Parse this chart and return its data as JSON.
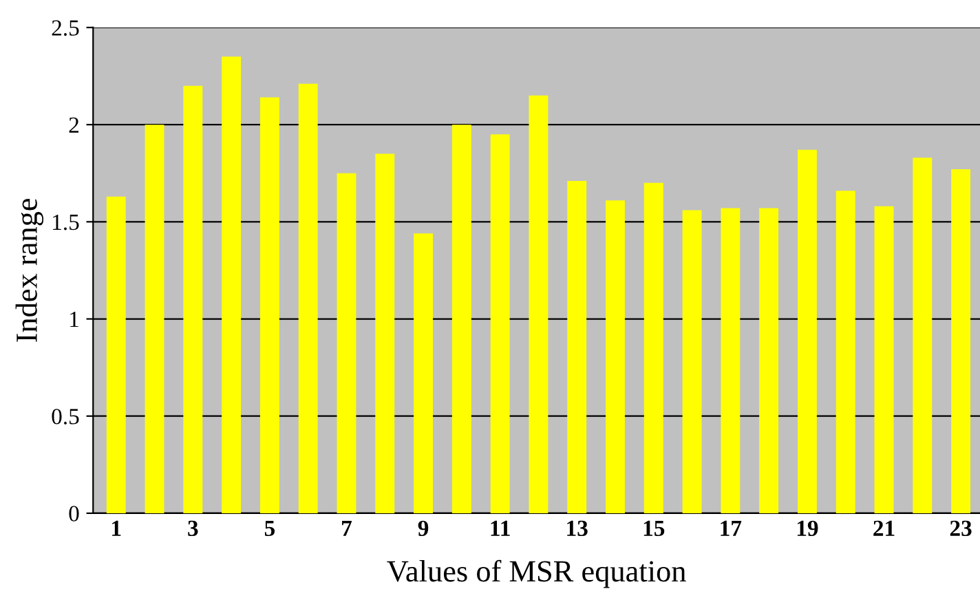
{
  "chart_data": {
    "type": "bar",
    "xlabel": "Values of MSR equation",
    "ylabel": "Index range",
    "categories": [
      "1",
      null,
      "3",
      null,
      "5",
      null,
      "7",
      null,
      "9",
      null,
      "11",
      null,
      "13",
      null,
      "15",
      null,
      "17",
      null,
      "19",
      null,
      "21",
      null,
      "23"
    ],
    "values": [
      1.63,
      2.0,
      2.2,
      2.35,
      2.14,
      2.21,
      1.75,
      1.85,
      1.44,
      2.0,
      1.95,
      2.15,
      1.71,
      1.61,
      1.7,
      1.56,
      1.57,
      1.57,
      1.87,
      1.66,
      1.58,
      1.83,
      1.77
    ],
    "color": "#ffff00",
    "ylim": [
      0,
      2.5
    ],
    "yticks": [
      0,
      0.5,
      1,
      1.5,
      2,
      2.5
    ],
    "grid": "y",
    "legend": false
  }
}
